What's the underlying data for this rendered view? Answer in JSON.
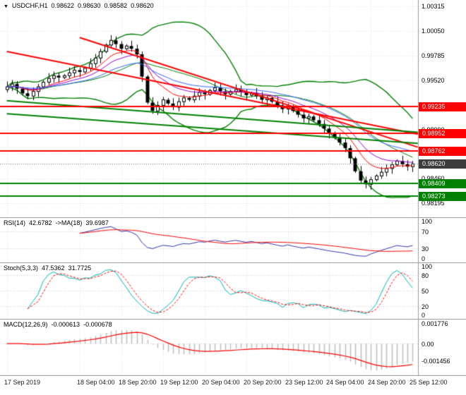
{
  "window": {
    "symbol_marker": "▼",
    "title": {
      "symbol": "USDCHF,H1",
      "open": "0.98622",
      "high": "0.98630",
      "low": "0.98582",
      "close": "0.98620"
    }
  },
  "chart_data": {
    "type": "candlestick",
    "symbol": "USDCHF",
    "timeframe": "H1",
    "x_labels": [
      "17 Sep 2019",
      "18 Sep 04:00",
      "18 Sep 20:00",
      "19 Sep 12:00",
      "20 Sep 04:00",
      "20 Sep 20:00",
      "23 Sep 12:00",
      "24 Sep 04:00",
      "24 Sep 20:00",
      "25 Sep 12:00"
    ],
    "tick_indices": [
      0,
      14,
      22,
      30,
      38,
      46,
      54,
      62,
      70,
      78
    ],
    "first_open": 0.9942,
    "closes": [
      0.9945,
      0.9948,
      0.9943,
      0.9938,
      0.9935,
      0.994,
      0.9945,
      0.995,
      0.9954,
      0.9957,
      0.9955,
      0.9957,
      0.996,
      0.9963,
      0.9961,
      0.9965,
      0.997,
      0.9976,
      0.9983,
      0.999,
      0.9995,
      0.9991,
      0.9986,
      0.9989,
      0.9986,
      0.998,
      0.9956,
      0.9928,
      0.9919,
      0.9925,
      0.9931,
      0.9927,
      0.9923,
      0.9929,
      0.9933,
      0.9931,
      0.9935,
      0.9939,
      0.9937,
      0.9941,
      0.9944,
      0.994,
      0.9937,
      0.994,
      0.9942,
      0.9939,
      0.9936,
      0.9938,
      0.9935,
      0.9931,
      0.9933,
      0.9929,
      0.9925,
      0.9921,
      0.9924,
      0.9919,
      0.9915,
      0.9911,
      0.9913,
      0.9909,
      0.9905,
      0.99,
      0.9895,
      0.989,
      0.9885,
      0.9879,
      0.9868,
      0.9854,
      0.9844,
      0.984,
      0.9845,
      0.9849,
      0.9853,
      0.9857,
      0.9861,
      0.9865,
      0.98615,
      0.9859,
      0.9862
    ],
    "price_scale": {
      "min": 0.9806,
      "max": 1.0037
    },
    "price_axis_labels": [
      {
        "text": "1.00315",
        "value": 1.00315
      },
      {
        "text": "1.00050",
        "value": 1.0005
      },
      {
        "text": "0.99785",
        "value": 0.99785
      },
      {
        "text": "0.99520",
        "value": 0.9952
      },
      {
        "text": "0.99255",
        "value": 0.99255
      },
      {
        "text": "0.98990",
        "value": 0.9899
      },
      {
        "text": "0.98725",
        "value": 0.98725
      },
      {
        "text": "0.98460",
        "value": 0.9846
      },
      {
        "text": "0.98195",
        "value": 0.98195
      }
    ],
    "levels": [
      {
        "text": "0.99235",
        "value": 0.99235,
        "color": "#ff0000"
      },
      {
        "text": "0.98952",
        "value": 0.98952,
        "color": "#ff0000"
      },
      {
        "text": "0.98762",
        "value": 0.98762,
        "color": "#ff0000"
      },
      {
        "text": "0.98409",
        "value": 0.98409,
        "color": "#008000"
      },
      {
        "text": "0.98273",
        "value": 0.98273,
        "color": "#008000"
      }
    ],
    "current_price": {
      "text": "0.98620",
      "value": 0.9862,
      "color": "#3c3c3c"
    },
    "trendlines": [
      {
        "color": "#ff0000",
        "width": 2,
        "from": {
          "i": 0,
          "p": 0.9983
        },
        "to": {
          "i": 79,
          "p": 0.9894
        }
      },
      {
        "color": "#ff0000",
        "width": 2,
        "from": {
          "i": 14,
          "p": 0.9998
        },
        "to": {
          "i": 79,
          "p": 0.988
        }
      },
      {
        "color": "#008000",
        "width": 2,
        "from": {
          "i": 0,
          "p": 0.993
        },
        "to": {
          "i": 79,
          "p": 0.9896
        }
      },
      {
        "color": "#008000",
        "width": 2,
        "from": {
          "i": 0,
          "p": 0.9916
        },
        "to": {
          "i": 79,
          "p": 0.9884
        }
      }
    ],
    "bollinger": {
      "period": 20,
      "deviation": 2,
      "color": "#008000"
    },
    "moving_averages": [
      {
        "period": 8,
        "color": "#ff0000"
      },
      {
        "period": 13,
        "color": "#9400d3"
      },
      {
        "period": 24,
        "color": "#3366ff"
      }
    ],
    "indicators": {
      "rsi": {
        "label": "RSI(14)",
        "value": "42.6782",
        "ma_label": "->MA(18)",
        "ma_value": "39.6987",
        "period": 14,
        "ma_period": 18,
        "axis": [
          {
            "text": "100",
            "value": 100
          },
          {
            "text": "70",
            "value": 70
          },
          {
            "text": "30",
            "value": 30
          },
          {
            "text": "0",
            "value": 0
          }
        ],
        "levels": [
          70,
          30
        ]
      },
      "stoch": {
        "label": "Stoch(5,3,3)",
        "value": "47.5362",
        "value2": "31.7725",
        "k_period": 5,
        "d_period": 3,
        "slowing": 3,
        "axis": [
          {
            "text": "100",
            "value": 100
          },
          {
            "text": "80",
            "value": 80
          },
          {
            "text": "50",
            "value": 50
          },
          {
            "text": "20",
            "value": 20
          },
          {
            "text": "0",
            "value": 0
          }
        ],
        "levels": [
          80,
          50,
          20
        ]
      },
      "macd": {
        "label": "MACD(12,26,9)",
        "value": "-0.000613",
        "value2": "-0.000678",
        "fast": 12,
        "slow": 26,
        "signal": 9,
        "axis": [
          {
            "text": "0.001776",
            "value": 0.001776
          },
          {
            "text": "0.00",
            "value": 0
          },
          {
            "text": "-0.001456",
            "value": -0.001456
          }
        ]
      }
    },
    "colors": {
      "background": "#ffffff",
      "grid": "#e3e3e3",
      "separator": "#9a9a9a",
      "candle_up_fill": "#ffffff",
      "candle_down_fill": "#000000",
      "candle_border": "#000000",
      "bollinger": "#008000",
      "level_red": "#ff0000",
      "level_green": "#008000",
      "current_badge": "#3c3c3c",
      "current_line": "#707070",
      "rsi_line": "#3333aa",
      "rsi_ma": "#ff0000",
      "stoch_k": "#00b3b3",
      "stoch_d": "#ff0000",
      "macd_hist": "#bdbdbd",
      "macd_signal": "#ff0000",
      "ma_fast": "#ff0000",
      "ma_mid": "#9400d3",
      "ma_slow": "#3366ff",
      "axis_text": "#000000"
    }
  }
}
